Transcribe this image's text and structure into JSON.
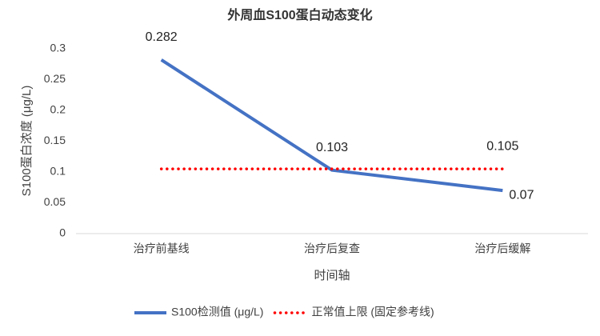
{
  "chart_data": {
    "type": "line",
    "title": "外周血S100蛋白动态变化",
    "x_label": "时间轴",
    "y_label": "S100蛋白浓度 (μg/L)",
    "categories": [
      "治疗前基线",
      "治疗后复查",
      "治疗后缓解"
    ],
    "series": [
      {
        "name": "S100检测值 (μg/L)",
        "color": "#4472c4",
        "style": "solid",
        "values": [
          0.282,
          0.103,
          0.07
        ],
        "labeled": [
          true,
          true,
          true
        ]
      },
      {
        "name": "正常值上限 (固定参考线)",
        "color": "#ff0000",
        "style": "dotted",
        "values": [
          0.105,
          0.105,
          0.105
        ],
        "labeled": [
          false,
          false,
          true
        ]
      }
    ],
    "ylim": [
      0,
      0.3
    ],
    "yticks": [
      0,
      0.05,
      0.1,
      0.15,
      0.2,
      0.25,
      0.3
    ],
    "grid": false,
    "legend": "bottom"
  }
}
